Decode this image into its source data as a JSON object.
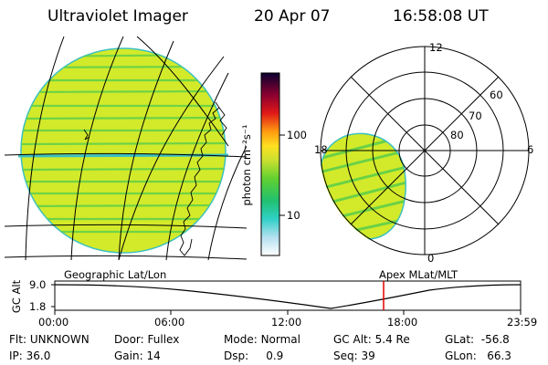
{
  "header": {
    "instrument": "Ultraviolet Imager",
    "date": "20 Apr 07",
    "time": "16:58:08 UT"
  },
  "colorbar": {
    "unit_label": "photon cm⁻²s⁻¹",
    "ticks": [
      "100",
      "10"
    ]
  },
  "polar": {
    "hour_labels": {
      "top": "12",
      "left": "18",
      "right": "6",
      "bottom": "0"
    },
    "lat_labels": [
      "60",
      "70",
      "80"
    ]
  },
  "timeline": {
    "yaxis_label": "GC Alt",
    "ymax": "9.0",
    "ymin": "1.8",
    "left_caption": "Geographic Lat/Lon",
    "right_caption": "Apex MLat/MLT",
    "time_ticks": [
      "00:00",
      "06:00",
      "12:00",
      "18:00",
      "23:59"
    ],
    "marker_color": "#e00000"
  },
  "info": {
    "row1": [
      {
        "key": "Flt:",
        "value": "UNKNOWN"
      },
      {
        "key": "Door:",
        "value": "Fullex"
      },
      {
        "key": "Mode:",
        "value": "Normal"
      },
      {
        "key": "GC Alt:",
        "value": "5.4 Re"
      },
      {
        "key": "GLat:",
        "value": "-56.8"
      }
    ],
    "row2": [
      {
        "key": "IP:",
        "value": "36.0"
      },
      {
        "key": "Gain:",
        "value": "14"
      },
      {
        "key": "Dsp:",
        "value": "0.9"
      },
      {
        "key": "Seq:",
        "value": "39"
      },
      {
        "key": "GLon:",
        "value": "66.3"
      }
    ]
  },
  "colors": {
    "disk_fill": "#d2ea2a",
    "disk_stripe": "#5fcf4a",
    "disk_edge": "#3cc0c0"
  }
}
